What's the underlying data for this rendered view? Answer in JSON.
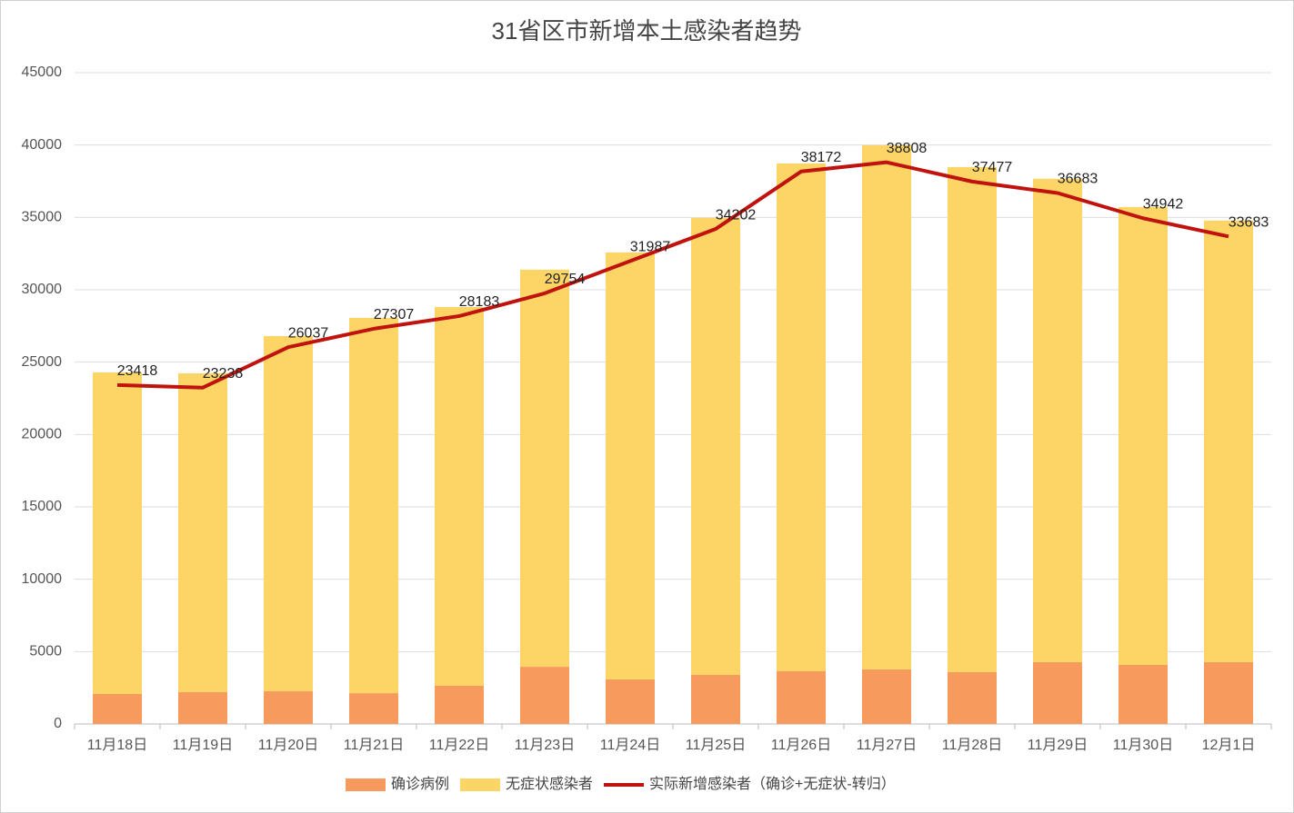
{
  "chart_data": {
    "type": "stacked-bar-line",
    "title": "31省区市新增本土感染者趋势",
    "categories": [
      "11月18日",
      "11月19日",
      "11月20日",
      "11月21日",
      "11月22日",
      "11月23日",
      "11月24日",
      "11月25日",
      "11月26日",
      "11月27日",
      "11月28日",
      "11月29日",
      "11月30日",
      "12月1日"
    ],
    "series": [
      {
        "name": "确诊病例",
        "color": "#f79a5e",
        "kind": "bar",
        "values": [
          2070,
          2200,
          2260,
          2130,
          2640,
          3950,
          3080,
          3390,
          3640,
          3770,
          3580,
          4270,
          4080,
          4270
        ]
      },
      {
        "name": "无症状感染者",
        "color": "#fdd567",
        "kind": "bar",
        "values": [
          22220,
          22030,
          24540,
          25930,
          26170,
          27440,
          29500,
          31580,
          35090,
          36220,
          34900,
          33400,
          31640,
          30510
        ]
      },
      {
        "name": "实际新增感染者（确诊+无症状-转归）",
        "color": "#c0130e",
        "kind": "line",
        "values": [
          23418,
          23238,
          26037,
          27307,
          28183,
          29754,
          31987,
          34202,
          38172,
          38808,
          37477,
          36683,
          34942,
          33683
        ]
      }
    ],
    "ylim": [
      0,
      45000
    ],
    "yticks": [
      0,
      5000,
      10000,
      15000,
      20000,
      25000,
      30000,
      35000,
      40000,
      45000
    ],
    "grid": true
  }
}
